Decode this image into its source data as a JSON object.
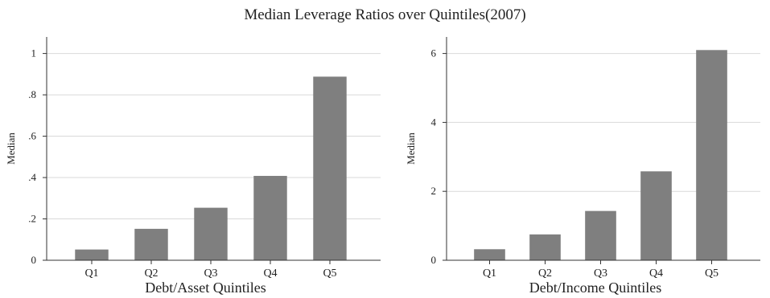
{
  "figure": {
    "title": "Median Leverage Ratios over Quintiles(2007)"
  },
  "colors": {
    "bar": "#7f7f7f",
    "grid": "#d9d9d9",
    "axis": "#333333",
    "text": "#222222"
  },
  "chart_data": [
    {
      "type": "bar",
      "categories": [
        "Q1",
        "Q2",
        "Q3",
        "Q4",
        "Q5"
      ],
      "values": [
        0.052,
        0.152,
        0.254,
        0.408,
        0.888
      ],
      "xlabel": "Debt/Asset Quintiles",
      "ylabel": "Median",
      "ylim": [
        0,
        1.08
      ],
      "yticks": [
        0,
        0.2,
        0.4,
        0.6,
        0.8,
        1
      ],
      "ytick_labels": [
        "0",
        ".2",
        ".4",
        ".6",
        ".8",
        "1"
      ],
      "grid": true
    },
    {
      "type": "bar",
      "categories": [
        "Q1",
        "Q2",
        "Q3",
        "Q4",
        "Q5"
      ],
      "values": [
        0.32,
        0.75,
        1.43,
        2.58,
        6.1
      ],
      "xlabel": "Debt/Income Quintiles",
      "ylabel": "Median",
      "ylim": [
        0,
        6.48
      ],
      "yticks": [
        0,
        2,
        4,
        6
      ],
      "ytick_labels": [
        "0",
        "2",
        "4",
        "6"
      ],
      "grid": true
    }
  ]
}
